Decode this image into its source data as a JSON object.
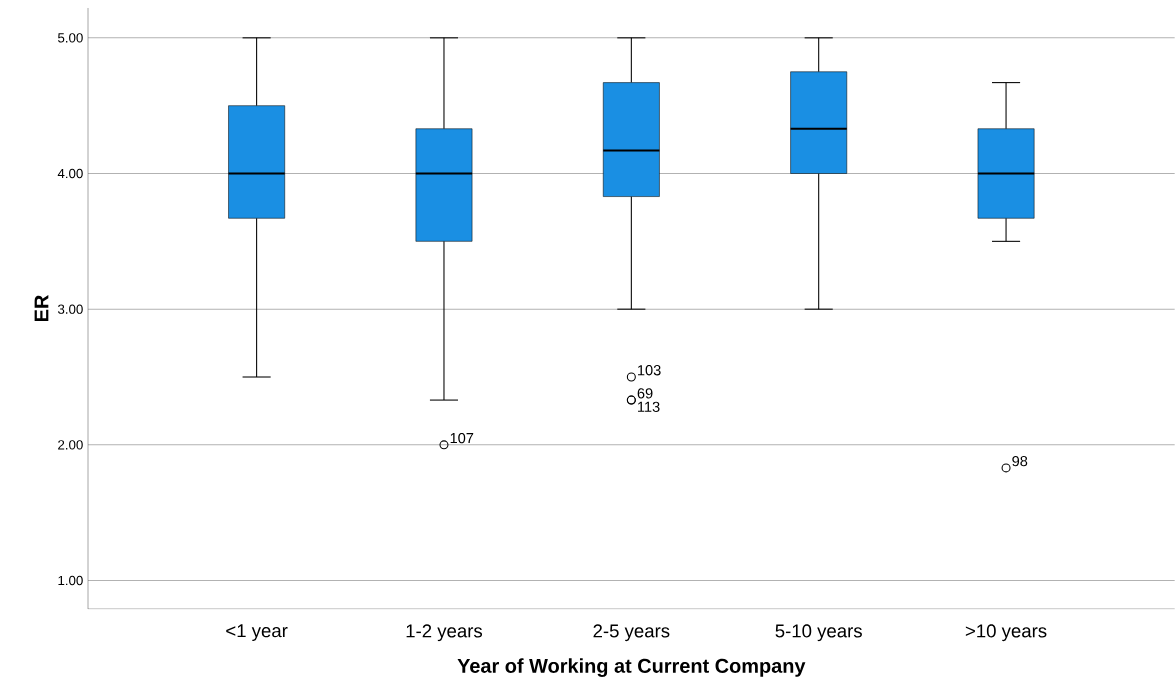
{
  "chart_data": {
    "type": "box",
    "xlabel": "Year of Working at Current Company",
    "ylabel": "ER",
    "categories": [
      "<1 year",
      "1-2 years",
      "2-5 years",
      "5-10 years",
      ">10 years"
    ],
    "color": "#1a8fe3",
    "ylim": [
      0.79,
      5.22
    ],
    "yticks": [
      {
        "value": 1,
        "label": "1.00"
      },
      {
        "value": 2,
        "label": "2.00"
      },
      {
        "value": 3,
        "label": "3.00"
      },
      {
        "value": 4,
        "label": "4.00"
      },
      {
        "value": 5,
        "label": "5.00"
      }
    ],
    "grid": "y",
    "boxes": [
      {
        "low": 2.5,
        "q1": 3.67,
        "median": 4.0,
        "q3": 4.5,
        "high": 5.0
      },
      {
        "low": 2.33,
        "q1": 3.5,
        "median": 4.0,
        "q3": 4.33,
        "high": 5.0,
        "outliers": [
          2.0
        ]
      },
      {
        "low": 3.0,
        "q1": 3.83,
        "median": 4.17,
        "q3": 4.67,
        "high": 5.0,
        "outliers": [
          2.5,
          2.33,
          2.33
        ]
      },
      {
        "low": 3.0,
        "q1": 4.0,
        "median": 4.33,
        "q3": 4.75,
        "high": 5.0
      },
      {
        "low": 3.5,
        "q1": 3.67,
        "median": 4.0,
        "q3": 4.33,
        "high": 4.67,
        "outliers": [
          1.83
        ]
      }
    ],
    "annotations": [
      "107",
      "103",
      "69",
      "113",
      "98"
    ]
  }
}
